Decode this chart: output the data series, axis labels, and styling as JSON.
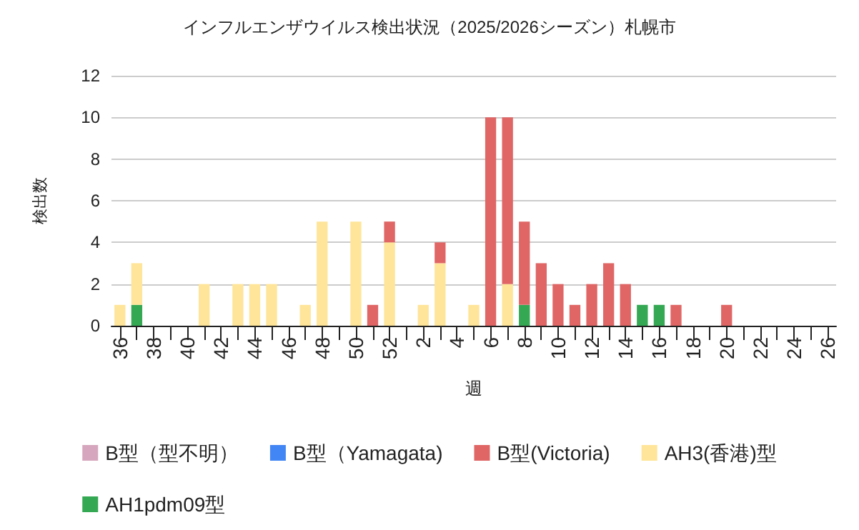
{
  "chart_data": {
    "type": "bar",
    "title": "インフルエンザウイルス検出状況（2025/2026シーズン）札幌市",
    "xlabel": "週",
    "ylabel": "検出数",
    "categories": [
      "36",
      null,
      "38",
      null,
      "40",
      null,
      "42",
      null,
      "44",
      null,
      "46",
      null,
      "48",
      null,
      "50",
      null,
      "52",
      null,
      "2",
      null,
      "4",
      null,
      "6",
      null,
      "8",
      null,
      "10",
      null,
      "12",
      null,
      "14",
      null,
      "16",
      null,
      "18",
      null,
      "20",
      null,
      "22",
      null,
      "24",
      null,
      "26"
    ],
    "stacked": true,
    "series": [
      {
        "name": "AH1pdm09型",
        "color": "#34a853",
        "values": [
          0,
          1,
          0,
          0,
          0,
          0,
          0,
          0,
          0,
          0,
          0,
          0,
          0,
          0,
          0,
          0,
          0,
          0,
          0,
          0,
          0,
          0,
          0,
          0,
          1,
          0,
          0,
          0,
          0,
          0,
          0,
          1,
          1,
          0,
          0,
          0,
          0,
          0,
          0,
          0,
          0,
          0,
          0
        ]
      },
      {
        "name": "AH3(香港)型",
        "color": "#ffe599",
        "values": [
          1,
          2,
          0,
          0,
          0,
          2,
          0,
          2,
          2,
          2,
          0,
          1,
          5,
          0,
          5,
          0,
          4,
          0,
          1,
          3,
          0,
          1,
          0,
          2,
          0,
          0,
          0,
          0,
          0,
          0,
          0,
          0,
          0,
          0,
          0,
          0,
          0,
          0,
          0,
          0,
          0,
          0,
          0
        ]
      },
      {
        "name": "B型(Victoria)",
        "color": "#e06666",
        "values": [
          0,
          0,
          0,
          0,
          0,
          0,
          0,
          0,
          0,
          0,
          0,
          0,
          0,
          0,
          0,
          1,
          1,
          0,
          0,
          1,
          0,
          0,
          10,
          8,
          4,
          3,
          2,
          1,
          2,
          3,
          2,
          0,
          0,
          1,
          0,
          0,
          1,
          0,
          0,
          0,
          0,
          0,
          0
        ]
      },
      {
        "name": "B型（Yamagata)",
        "color": "#4285f4",
        "values": [
          0,
          0,
          0,
          0,
          0,
          0,
          0,
          0,
          0,
          0,
          0,
          0,
          0,
          0,
          0,
          0,
          0,
          0,
          0,
          0,
          0,
          0,
          0,
          0,
          0,
          0,
          0,
          0,
          0,
          0,
          0,
          0,
          0,
          0,
          0,
          0,
          0,
          0,
          0,
          0,
          0,
          0,
          0
        ]
      },
      {
        "name": "B型（型不明）",
        "color": "#d5a6bd",
        "values": [
          0,
          0,
          0,
          0,
          0,
          0,
          0,
          0,
          0,
          0,
          0,
          0,
          0,
          0,
          0,
          0,
          0,
          0,
          0,
          0,
          0,
          0,
          0,
          0,
          0,
          0,
          0,
          0,
          0,
          0,
          0,
          0,
          0,
          0,
          0,
          0,
          0,
          0,
          0,
          0,
          0,
          0,
          0
        ]
      }
    ],
    "ylim": [
      0,
      12
    ],
    "yticks": [
      0,
      2,
      4,
      6,
      8,
      10,
      12
    ],
    "grid": "y",
    "legend": "bottom"
  }
}
